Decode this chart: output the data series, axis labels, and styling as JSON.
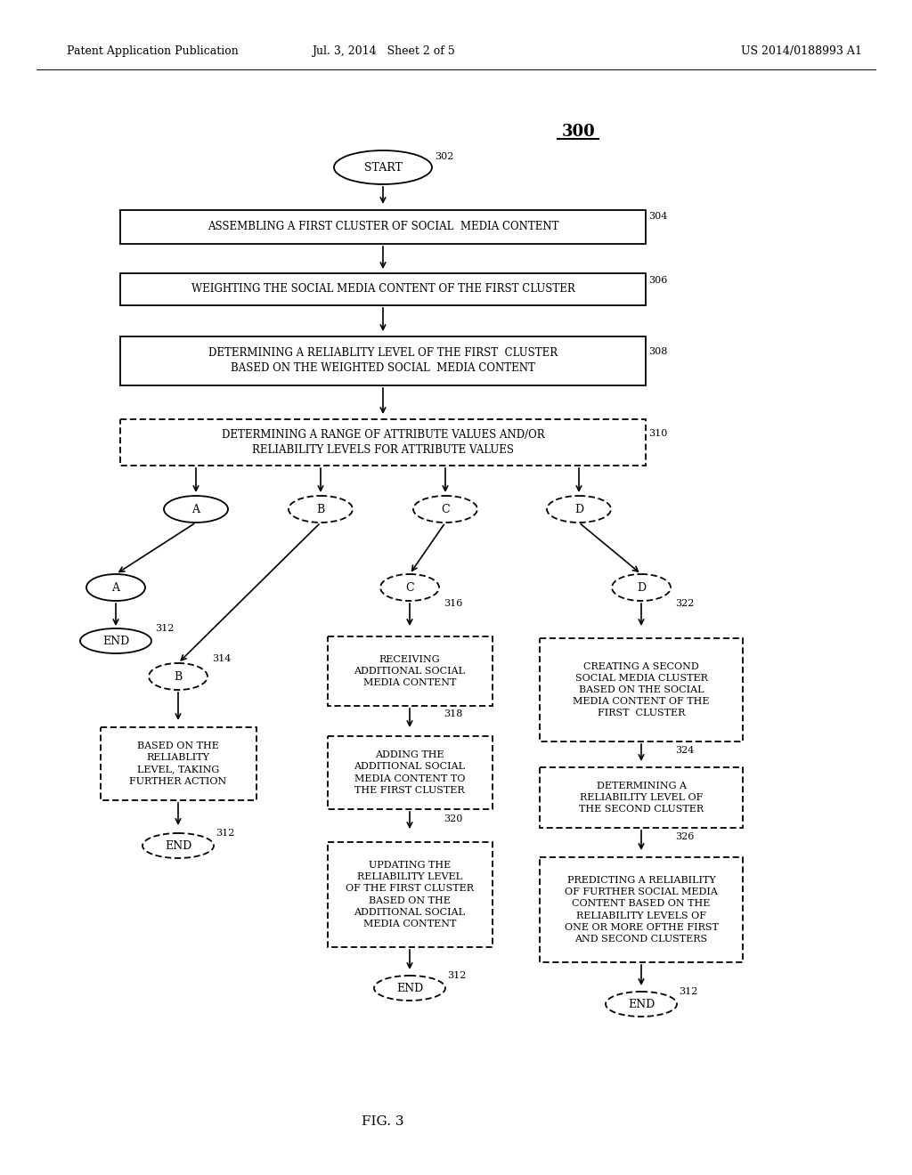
{
  "header_left": "Patent Application Publication",
  "header_mid": "Jul. 3, 2014   Sheet 2 of 5",
  "header_right": "US 2014/0188993 A1",
  "title": "300",
  "fig_label": "FIG. 3",
  "bg_color": "#ffffff"
}
